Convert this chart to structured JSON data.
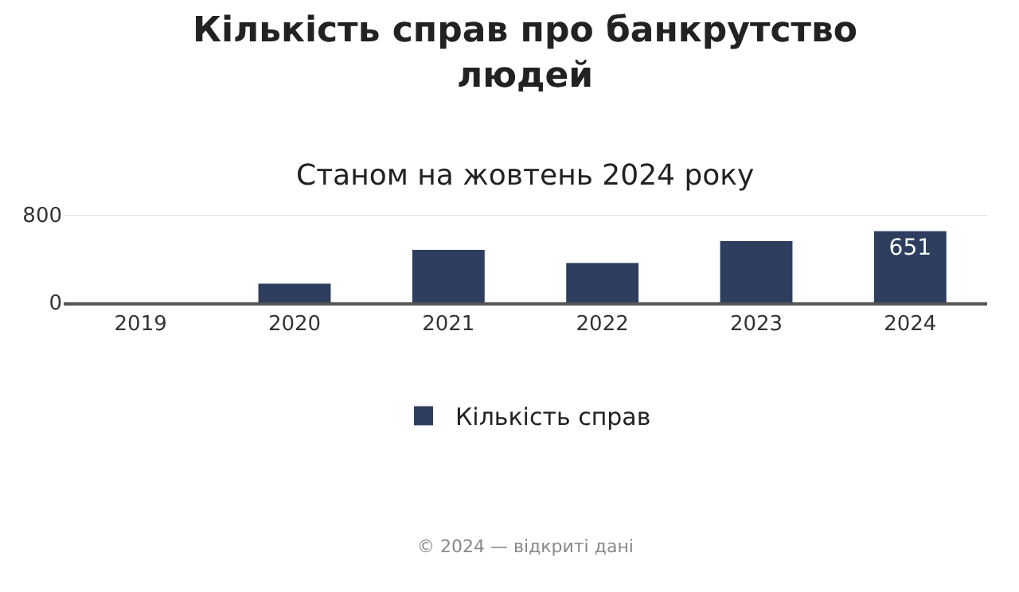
{
  "chart_data": {
    "type": "bar",
    "title": "Кількість справ про банкрутство\nлюдей",
    "subtitle": "Станом на жовтень 2024 року",
    "categories": [
      "2019",
      "2020",
      "2021",
      "2022",
      "2023",
      "2024"
    ],
    "series": [
      {
        "name": "Кількість справ",
        "color": "#2d3e5e",
        "values": [
          0,
          170,
          480,
          360,
          560,
          651
        ],
        "value_labels": [
          null,
          null,
          null,
          null,
          null,
          "651"
        ]
      }
    ],
    "ylim": [
      0,
      800
    ],
    "yticks": [
      0,
      800
    ],
    "grid": "y",
    "legend": "bottom",
    "annotations": [
      "© 2024 — відкриті дані"
    ]
  }
}
